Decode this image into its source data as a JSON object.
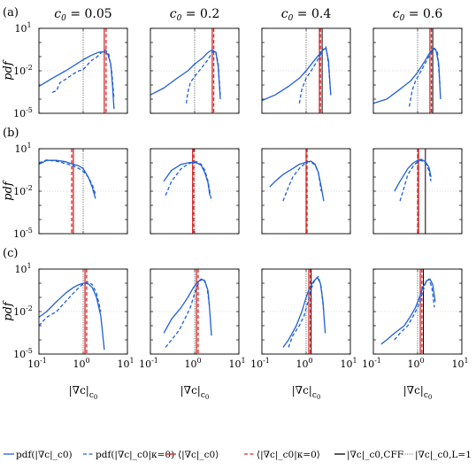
{
  "chart_data": {
    "type": "line",
    "layout": "3x4 grid of log-log pdf panels",
    "row_labels": [
      "(a)",
      "(b)",
      "(c)"
    ],
    "column_titles": [
      "c0 = 0.05",
      "c0 = 0.2",
      "c0 = 0.4",
      "c0 = 0.6"
    ],
    "column_title_prefix": "c",
    "column_title_sub": "0",
    "column_values": [
      "= 0.05",
      "= 0.2",
      "= 0.4",
      "= 0.6"
    ],
    "ylabel": "pdf",
    "xlabel": "|∇c|_c0",
    "x_scale": "log",
    "y_scale": "log",
    "xlim": [
      0.1,
      10
    ],
    "ylim": [
      1e-05,
      10
    ],
    "x_ticks": [
      {
        "base": "10",
        "exp": "-1"
      },
      {
        "base": "10",
        "exp": "0"
      },
      {
        "base": "10",
        "exp": "1"
      }
    ],
    "y_ticks": [
      {
        "base": "10",
        "exp": "1"
      },
      {
        "base": "10",
        "exp": "-2"
      },
      {
        "base": "10",
        "exp": "-5"
      }
    ],
    "colors": {
      "blue": "#1f5fd6",
      "red": "#d62728",
      "black": "#000000",
      "grey": "#555555"
    },
    "legend": [
      {
        "style": "solid-blue",
        "label": "pdf(|∇c|_c0)"
      },
      {
        "style": "dashed-blue",
        "label": "pdf(|∇c|_c0|κ=0)"
      },
      {
        "style": "solid-red",
        "label": "⟨|∇c|_c0⟩"
      },
      {
        "style": "dashed-red",
        "label": "⟨|∇c|_c0|κ=0⟩"
      },
      {
        "style": "solid-black",
        "label": "|∇c|_c0,CFF"
      },
      {
        "style": "dotted-black",
        "label": "|∇c|_c0,L=1"
      }
    ],
    "panels": [
      {
        "row": 0,
        "col": 0,
        "series": [
          {
            "name": "pdf(|∇c|_c0)",
            "x": [
              0.1,
              0.2,
              0.4,
              0.7,
              1.0,
              1.5,
              2.2,
              3.0,
              3.6,
              4.2,
              4.6,
              5.0
            ],
            "y": [
              0.0008,
              0.003,
              0.01,
              0.03,
              0.06,
              0.12,
              0.2,
              0.22,
              0.15,
              0.03,
              0.001,
              2e-05
            ]
          },
          {
            "name": "pdf(|∇c|_c0|κ=0)",
            "x": [
              0.2,
              0.25,
              0.3,
              0.4,
              0.6,
              0.8,
              1.0,
              1.5,
              2.0,
              2.6,
              3.2,
              3.8,
              4.4,
              5.0
            ],
            "y": [
              0.0003,
              0.0004,
              0.0015,
              0.0025,
              0.006,
              0.01,
              0.012,
              0.05,
              0.09,
              0.2,
              0.3,
              0.15,
              0.01,
              0.0001
            ]
          }
        ],
        "vlines": {
          "mean": 3.0,
          "mean_k0": 3.3,
          "cff": null,
          "laminar": 1.0
        }
      },
      {
        "row": 0,
        "col": 1,
        "series": [
          {
            "name": "pdf(|∇c|_c0)",
            "x": [
              0.1,
              0.2,
              0.4,
              0.7,
              1.0,
              1.5,
              2.0,
              2.5,
              3.0,
              3.4,
              3.8
            ],
            "y": [
              0.0002,
              0.0006,
              0.003,
              0.01,
              0.03,
              0.08,
              0.2,
              0.3,
              0.2,
              0.02,
              0.0001
            ]
          },
          {
            "name": "pdf(|∇c|_c0|κ=0)",
            "x": [
              0.65,
              0.7,
              0.8,
              1.0,
              1.4,
              2.0,
              2.5,
              3.0,
              3.4,
              3.8
            ],
            "y": [
              5e-05,
              0.0003,
              0.0015,
              0.004,
              0.015,
              0.06,
              0.2,
              0.25,
              0.03,
              0.0002
            ]
          }
        ],
        "vlines": {
          "mean": 2.5,
          "mean_k0": 2.7,
          "cff": null,
          "laminar": 1.0
        }
      },
      {
        "row": 0,
        "col": 2,
        "series": [
          {
            "name": "pdf(|∇c|_c0)",
            "x": [
              0.1,
              0.2,
              0.4,
              0.7,
              1.0,
              1.5,
              2.0,
              2.4,
              2.8,
              3.2,
              3.6
            ],
            "y": [
              8e-05,
              0.0002,
              0.0008,
              0.003,
              0.01,
              0.05,
              0.15,
              0.3,
              0.4,
              0.05,
              0.0002
            ]
          },
          {
            "name": "pdf(|∇c|_c0|κ=0)",
            "x": [
              0.7,
              0.8,
              1.0,
              1.3,
              1.7,
              2.0,
              2.4,
              2.8,
              3.2,
              3.6
            ],
            "y": [
              5e-05,
              0.0005,
              0.003,
              0.01,
              0.04,
              0.1,
              0.3,
              0.5,
              0.03,
              0.0002
            ]
          }
        ],
        "vlines": {
          "mean": 2.0,
          "mean_k0": 2.1,
          "cff": 2.3,
          "laminar": 1.0
        }
      },
      {
        "row": 0,
        "col": 3,
        "series": [
          {
            "name": "pdf(|∇c|_c0)",
            "x": [
              0.1,
              0.2,
              0.4,
              0.7,
              1.0,
              1.4,
              1.8,
              2.2,
              2.6,
              3.0,
              3.3
            ],
            "y": [
              5e-05,
              0.0001,
              0.0005,
              0.002,
              0.008,
              0.04,
              0.15,
              0.35,
              0.3,
              0.03,
              0.0001
            ]
          },
          {
            "name": "pdf(|∇c|_c0|κ=0)",
            "x": [
              0.65,
              0.75,
              0.9,
              1.2,
              1.6,
              2.0,
              2.4,
              2.8,
              3.2
            ],
            "y": [
              3e-05,
              0.0004,
              0.002,
              0.01,
              0.05,
              0.2,
              0.4,
              0.2,
              0.001
            ]
          }
        ],
        "vlines": {
          "mean": 1.9,
          "mean_k0": 2.05,
          "cff": 2.2,
          "laminar": 1.0
        }
      },
      {
        "row": 1,
        "col": 0,
        "series": [
          {
            "name": "pdf(|∇c|_c0)",
            "x": [
              0.1,
              0.15,
              0.25,
              0.4,
              0.6,
              0.8,
              1.0,
              1.3,
              1.6,
              1.9
            ],
            "y": [
              0.8,
              1.5,
              1.5,
              1.2,
              0.8,
              0.6,
              0.4,
              0.1,
              0.02,
              0.003
            ]
          },
          {
            "name": "pdf(|∇c|_c0|κ=0)",
            "x": [
              0.1,
              0.15,
              0.25,
              0.4,
              0.6,
              0.8,
              1.0,
              1.3,
              1.6,
              1.9
            ],
            "y": [
              1.0,
              1.6,
              1.3,
              0.9,
              0.6,
              0.4,
              0.25,
              0.1,
              0.03,
              0.006
            ]
          }
        ],
        "vlines": {
          "mean": 0.6,
          "mean_k0": 0.55,
          "cff": null,
          "laminar": 1.0
        }
      },
      {
        "row": 1,
        "col": 1,
        "series": [
          {
            "name": "pdf(|∇c|_c0)",
            "x": [
              0.2,
              0.3,
              0.5,
              0.7,
              0.9,
              1.1,
              1.4,
              1.7,
              2.0,
              2.2
            ],
            "y": [
              0.05,
              0.3,
              0.8,
              1.0,
              1.1,
              1.0,
              0.7,
              0.2,
              0.04,
              0.005
            ]
          },
          {
            "name": "pdf(|∇c|_c0|κ=0)",
            "x": [
              0.22,
              0.3,
              0.5,
              0.7,
              0.9,
              1.1,
              1.4,
              1.7,
              2.0,
              2.4
            ],
            "y": [
              0.005,
              0.05,
              0.4,
              0.8,
              1.1,
              1.2,
              0.8,
              0.3,
              0.05,
              0.002
            ]
          }
        ],
        "vlines": {
          "mean": 0.9,
          "mean_k0": 0.95,
          "cff": null,
          "laminar": 1.0
        }
      },
      {
        "row": 1,
        "col": 2,
        "series": [
          {
            "name": "pdf(|∇c|_c0)",
            "x": [
              0.15,
              0.2,
              0.3,
              0.5,
              0.7,
              0.9,
              1.1,
              1.3,
              1.6,
              1.9,
              2.2,
              2.5
            ],
            "y": [
              0.02,
              0.05,
              0.15,
              0.4,
              0.8,
              1.0,
              1.2,
              1.3,
              0.8,
              0.2,
              0.02,
              0.002
            ]
          },
          {
            "name": "pdf(|∇c|_c0|κ=0)",
            "x": [
              0.3,
              0.4,
              0.5,
              0.7,
              0.9,
              1.1,
              1.3,
              1.6,
              1.9,
              2.2
            ],
            "y": [
              0.002,
              0.02,
              0.1,
              0.4,
              0.8,
              1.2,
              1.1,
              0.7,
              0.2,
              0.01
            ]
          }
        ],
        "vlines": {
          "mean": 1.0,
          "mean_k0": 1.05,
          "cff": null,
          "laminar": 1.0
        }
      },
      {
        "row": 1,
        "col": 3,
        "series": [
          {
            "name": "pdf(|∇c|_c0)",
            "x": [
              0.3,
              0.4,
              0.5,
              0.6,
              0.8,
              1.0,
              1.2,
              1.5,
              1.8,
              2.0
            ],
            "y": [
              0.01,
              0.05,
              0.15,
              0.4,
              1.0,
              1.5,
              1.8,
              1.2,
              0.5,
              0.1
            ]
          },
          {
            "name": "pdf(|∇c|_c0|κ=0)",
            "x": [
              0.4,
              0.5,
              0.6,
              0.8,
              1.0,
              1.2,
              1.5,
              1.8,
              2.0
            ],
            "y": [
              0.002,
              0.02,
              0.15,
              0.6,
              1.2,
              1.5,
              0.9,
              0.3,
              0.05
            ]
          }
        ],
        "vlines": {
          "mean": 1.05,
          "mean_k0": 1.0,
          "cff": 1.5,
          "laminar": 1.0
        }
      },
      {
        "row": 2,
        "col": 0,
        "series": [
          {
            "name": "pdf(|∇c|_c0)",
            "x": [
              0.1,
              0.15,
              0.25,
              0.4,
              0.6,
              0.8,
              1.0,
              1.3,
              1.6,
              2.0,
              2.5,
              3.0
            ],
            "y": [
              0.004,
              0.01,
              0.05,
              0.2,
              0.5,
              0.8,
              1.0,
              0.9,
              0.5,
              0.1,
              0.005,
              2e-05
            ]
          },
          {
            "name": "pdf(|∇c|_c0|κ=0)",
            "x": [
              0.1,
              0.15,
              0.25,
              0.4,
              0.6,
              0.8,
              1.0,
              1.3,
              1.6,
              2.0,
              2.5
            ],
            "y": [
              0.001,
              0.004,
              0.01,
              0.05,
              0.2,
              0.5,
              0.9,
              1.2,
              0.8,
              0.2,
              0.01
            ]
          }
        ],
        "vlines": {
          "mean": 1.1,
          "mean_k0": 1.2,
          "cff": null,
          "laminar": 1.0
        }
      },
      {
        "row": 2,
        "col": 1,
        "series": [
          {
            "name": "pdf(|∇c|_c0)",
            "x": [
              0.2,
              0.3,
              0.5,
              0.7,
              0.9,
              1.1,
              1.4,
              1.7,
              2.0,
              2.2,
              2.4
            ],
            "y": [
              0.0003,
              0.003,
              0.02,
              0.1,
              0.4,
              1.0,
              2.0,
              1.5,
              0.3,
              0.01,
              0.0002
            ]
          },
          {
            "name": "pdf(|∇c|_c0|κ=0)",
            "x": [
              0.22,
              0.3,
              0.45,
              0.6,
              0.8,
              1.0,
              1.3,
              1.6,
              1.9,
              2.2
            ],
            "y": [
              3e-05,
              0.0001,
              0.0005,
              0.003,
              0.02,
              0.2,
              1.5,
              2.0,
              0.5,
              0.02
            ]
          }
        ],
        "vlines": {
          "mean": 1.1,
          "mean_k0": 1.2,
          "cff": null,
          "laminar": 1.0
        }
      },
      {
        "row": 2,
        "col": 2,
        "series": [
          {
            "name": "pdf(|∇c|_c0)",
            "x": [
              0.3,
              0.4,
              0.6,
              0.8,
              1.0,
              1.2,
              1.5,
              1.8,
              2.1,
              2.4,
              2.7
            ],
            "y": [
              3e-05,
              0.0001,
              0.001,
              0.01,
              0.1,
              0.5,
              1.5,
              2.5,
              1.0,
              0.05,
              0.0003
            ]
          },
          {
            "name": "pdf(|∇c|_c0|κ=0)",
            "x": [
              0.4,
              0.5,
              0.7,
              0.9,
              1.1,
              1.3,
              1.6,
              1.9,
              2.2,
              2.5
            ],
            "y": [
              3e-05,
              0.0002,
              0.001,
              0.005,
              0.05,
              0.4,
              2.0,
              3.0,
              0.5,
              0.01
            ]
          }
        ],
        "vlines": {
          "mean": 1.15,
          "mean_k0": 1.25,
          "cff": 1.3,
          "laminar": 1.0
        }
      },
      {
        "row": 2,
        "col": 3,
        "series": [
          {
            "name": "pdf(|∇c|_c0)",
            "x": [
              0.15,
              0.2,
              0.3,
              0.5,
              0.7,
              0.9,
              1.1,
              1.3,
              1.6,
              1.9,
              2.2,
              2.5
            ],
            "y": [
              5e-05,
              0.0001,
              0.0003,
              0.001,
              0.005,
              0.02,
              0.1,
              0.5,
              1.5,
              2.0,
              0.8,
              0.05
            ]
          },
          {
            "name": "pdf(|∇c|_c0|κ=0)",
            "x": [
              0.3,
              0.4,
              0.6,
              0.8,
              1.0,
              1.2,
              1.5,
              1.8,
              2.1,
              2.4
            ],
            "y": [
              0.0001,
              0.0003,
              0.001,
              0.005,
              0.02,
              0.1,
              1.0,
              2.0,
              0.5,
              0.02
            ]
          }
        ],
        "vlines": {
          "mean": 1.15,
          "mean_k0": 1.25,
          "cff": 1.35,
          "laminar": 1.0
        }
      }
    ]
  }
}
